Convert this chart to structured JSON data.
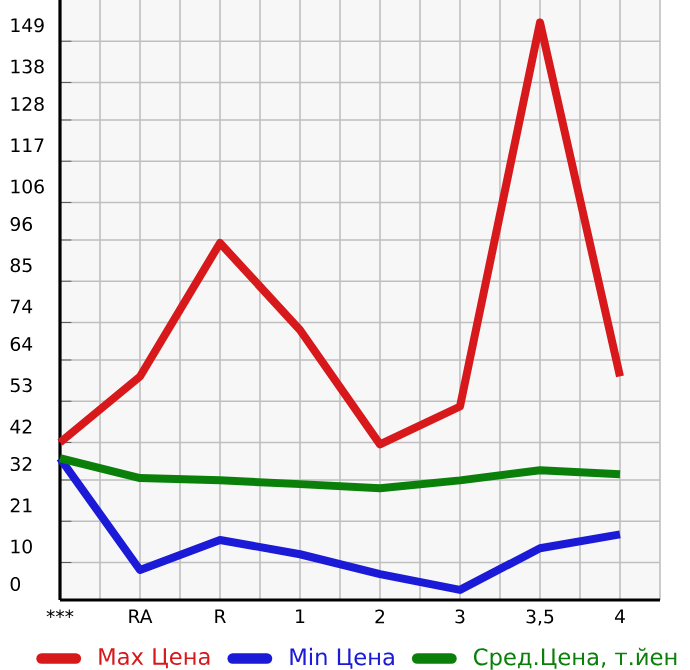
{
  "chart_data": {
    "type": "line",
    "categories": [
      "***",
      "RA",
      "R",
      "1",
      "2",
      "3",
      "3,5",
      "4"
    ],
    "series": [
      {
        "name": "Max Цена",
        "color": "#d7191c",
        "values": [
          42,
          59.6,
          95.2,
          72,
          41.5,
          51.6,
          154,
          59.6
        ]
      },
      {
        "name": "Min Цена",
        "color": "#1a1ad7",
        "values": [
          37.8,
          8,
          16,
          12.2,
          6.9,
          2.7,
          13.8,
          17.5
        ]
      },
      {
        "name": "Сред.Цена, т.йен",
        "color": "#0a800a",
        "values": [
          37.8,
          32.5,
          31.9,
          30.9,
          29.8,
          31.9,
          34.6,
          33.5
        ]
      }
    ],
    "ylim": [
      0,
      160
    ],
    "yticks": [
      0,
      10,
      21,
      32,
      42,
      53,
      64,
      74,
      85,
      96,
      106,
      117,
      128,
      138,
      149
    ],
    "grid": true,
    "legend": "bottom",
    "marker": "none",
    "line_style": "solid"
  }
}
